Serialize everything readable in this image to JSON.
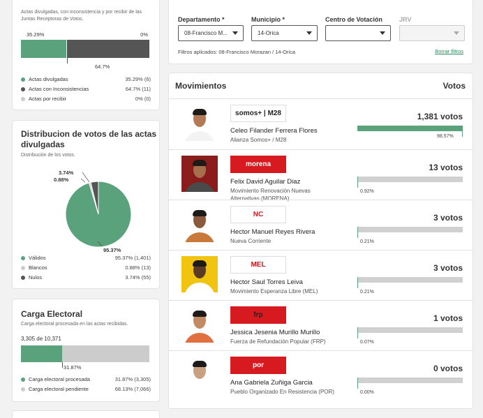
{
  "actas": {
    "subtitle": "Actas divulgadas, con inconsistencia y por recibir de las Juntas Receptoras de Votos.",
    "bar_left_label": "35.29%",
    "bar_right_label": "0%",
    "bar_bottom_label": "64.7%",
    "bar_green_fraction": 0.3529,
    "colors": {
      "green": "#5aa27c",
      "dark": "#555555",
      "light": "#cccccc"
    },
    "legend": [
      {
        "label": "Actas divulgadas",
        "value": "35.29% (6)",
        "color": "#5aa27c"
      },
      {
        "label": "Actas con Inconsistencias",
        "value": "64.7% (11)",
        "color": "#555555"
      },
      {
        "label": "Actas por recibir",
        "value": "0% (0)",
        "color": "#cccccc"
      }
    ]
  },
  "distribucion": {
    "title": "Distribucion de votos de las actas divulgadas",
    "subtitle": "Distribución de los votos.",
    "chart_data": {
      "type": "pie",
      "categories": [
        "Válidos",
        "Blancos",
        "Nulos"
      ],
      "values": [
        95.37,
        0.88,
        3.74
      ],
      "colors": [
        "#5aa27c",
        "#cccccc",
        "#555555"
      ]
    },
    "label_nulos": "3.74%",
    "label_blancos": "0.88%",
    "label_validos": "95.37%",
    "legend": [
      {
        "label": "Válidos",
        "value": "95.37% (1,401)",
        "color": "#5aa27c"
      },
      {
        "label": "Blancos",
        "value": "0.88% (13)",
        "color": "#cccccc"
      },
      {
        "label": "Nulos",
        "value": "3.74% (55)",
        "color": "#555555"
      }
    ]
  },
  "carga": {
    "title": "Carga Electoral",
    "subtitle": "Carga electoral procesada en las actas recibidas.",
    "count_label": "3,305 de 10,371",
    "bar_green_fraction": 0.3187,
    "bar_bottom_label": "31.87%",
    "legend": [
      {
        "label": "Carga electoral procesada",
        "value": "31.87% (3,305)",
        "color": "#5aa27c"
      },
      {
        "label": "Carga electoral pendiente",
        "value": "68.13% (7,066)",
        "color": "#cccccc"
      }
    ]
  },
  "filters": {
    "departamento_label": "Departamento *",
    "departamento_value": "08-Francisco M...",
    "municipio_label": "Municipio *",
    "municipio_value": "14-Orica",
    "centro_label": "Centro de Votación",
    "centro_value": "",
    "jrv_label": "JRV",
    "jrv_value": "",
    "applied_label": "Filtros aplicados:",
    "applied_value": "08-Francisco Morazan / 14-Orica",
    "clear_label": "Borrar filtros"
  },
  "movimientos": {
    "header_left": "Movimientos",
    "header_right": "Votos",
    "candidates": [
      {
        "name": "Celeo Filander Ferrera Flores",
        "party": "Alianza Somos+ / M28",
        "votes": "1,381 votos",
        "pct": "98.57%",
        "fraction": 0.9857,
        "logo": "somos+ | M28",
        "logo_bg": "#ffffff",
        "logo_color": "#222222",
        "photo_bg": "#ffffff",
        "shirt": "#f3f3f3",
        "skin": "#b47a55"
      },
      {
        "name": "Felix David Aguilar Diaz",
        "party": "Movimiento Renovación Nuevas Alternativas (MORENA)",
        "votes": "13 votos",
        "pct": "0.92%",
        "fraction": 0.0092,
        "logo": "morena",
        "logo_bg": "#d71920",
        "logo_color": "#ffffff",
        "photo_bg": "#8a1c1c",
        "shirt": "#4a4a4a",
        "skin": "#a86f4c"
      },
      {
        "name": "Hector Manuel Reyes Rivera",
        "party": "Nueva Corriente",
        "votes": "3 votos",
        "pct": "0.21%",
        "fraction": 0.0021,
        "logo": "NC",
        "logo_bg": "#ffffff",
        "logo_color": "#d71920",
        "photo_bg": "#ffffff",
        "shirt": "#c97a3a",
        "skin": "#8a5a3a"
      },
      {
        "name": "Hector Saul Torres Leiva",
        "party": "Movimiento Esperanza Libre (MEL)",
        "votes": "3 votos",
        "pct": "0.21%",
        "fraction": 0.0021,
        "logo": "MEL",
        "logo_bg": "#ffffff",
        "logo_color": "#c0161c",
        "photo_bg": "#f1c40f",
        "shirt": "#ffffff",
        "skin": "#5a3a26"
      },
      {
        "name": "Jessica Jesenia Murillo Murillo",
        "party": "Fuerza de Refundación Popular (FRP)",
        "votes": "1 votos",
        "pct": "0.07%",
        "fraction": 0.0007,
        "logo": "frp",
        "logo_bg": "#d71920",
        "logo_color": "#222222",
        "photo_bg": "#ffffff",
        "shirt": "#e07040",
        "skin": "#c48a66"
      },
      {
        "name": "Ana Gabriela Zuñiga Garcia",
        "party": "Pueblo Organizado En Resistencia (POR)",
        "votes": "0 votos",
        "pct": "0.00%",
        "fraction": 0.0,
        "logo": "por",
        "logo_bg": "#d71920",
        "logo_color": "#ffffff",
        "photo_bg": "#ffffff",
        "shirt": "#ffffff",
        "skin": "#c9a080"
      }
    ]
  }
}
